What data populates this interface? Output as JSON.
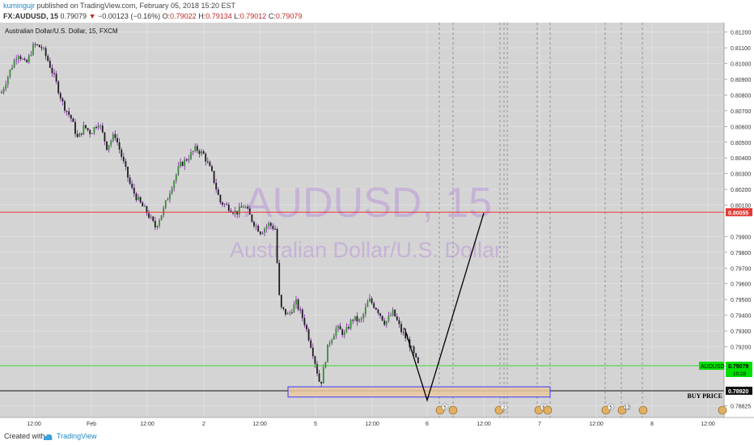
{
  "header": {
    "author": "kumingujr",
    "published": "published on TradingView.com, February 05, 2018 15:20 EST",
    "symbol_line": "FX:AUDUSD, 15",
    "last": "0.79079",
    "change_arrow": "▼",
    "change": "−0.00123 (−0.16%)",
    "o_label": "O:",
    "o": "0.79022",
    "h_label": "H:",
    "h": "0.79134",
    "l_label": "L:",
    "l": "0.79012",
    "c_label": "C:",
    "c": "0.79079"
  },
  "footer": {
    "created_with": "Created with",
    "brand": "TradingView"
  },
  "chart_data": {
    "type": "candlestick",
    "title": "Australian Dollar/U.S. Dollar, 15, FXCM",
    "watermark_symbol": "AUDUSD, 15",
    "watermark_name": "Australian Dollar/U.S. Dollar",
    "y_ticks": [
      "0.81200",
      "0.81100",
      "0.81000",
      "0.80900",
      "0.80800",
      "0.80700",
      "0.80600",
      "0.80500",
      "0.80400",
      "0.80300",
      "0.80200",
      "0.80100",
      "0.79900",
      "0.79800",
      "0.79700",
      "0.79600",
      "0.79500",
      "0.79400",
      "0.79300",
      "0.79200",
      "0.78825"
    ],
    "y_range": [
      0.7875,
      0.8126
    ],
    "x_ticks": [
      "12:00",
      "Feb",
      "12:00",
      "2",
      "12:00",
      "5",
      "12:00",
      "6",
      "12:00",
      "7",
      "12:00",
      "8",
      "12:00"
    ],
    "price_path": [
      [
        0,
        0.8079
      ],
      [
        12,
        0.8095
      ],
      [
        22,
        0.8107
      ],
      [
        32,
        0.8099
      ],
      [
        42,
        0.8112
      ],
      [
        52,
        0.811
      ],
      [
        60,
        0.8101
      ],
      [
        68,
        0.809
      ],
      [
        78,
        0.8074
      ],
      [
        88,
        0.8065
      ],
      [
        96,
        0.8052
      ],
      [
        104,
        0.806
      ],
      [
        112,
        0.8056
      ],
      [
        122,
        0.8063
      ],
      [
        132,
        0.8047
      ],
      [
        142,
        0.8055
      ],
      [
        152,
        0.8038
      ],
      [
        162,
        0.8021
      ],
      [
        172,
        0.8012
      ],
      [
        182,
        0.8005
      ],
      [
        192,
        0.7996
      ],
      [
        202,
        0.8007
      ],
      [
        212,
        0.8022
      ],
      [
        222,
        0.8035
      ],
      [
        232,
        0.804
      ],
      [
        242,
        0.8046
      ],
      [
        252,
        0.8042
      ],
      [
        262,
        0.803
      ],
      [
        272,
        0.8012
      ],
      [
        282,
        0.8009
      ],
      [
        292,
        0.8005
      ],
      [
        302,
        0.801
      ],
      [
        312,
        0.8
      ],
      [
        322,
        0.7993
      ],
      [
        332,
        0.7998
      ],
      [
        340,
        0.7995
      ],
      [
        346,
        0.7945
      ],
      [
        356,
        0.794
      ],
      [
        366,
        0.7948
      ],
      [
        376,
        0.7936
      ],
      [
        386,
        0.7918
      ],
      [
        396,
        0.7895
      ],
      [
        406,
        0.7922
      ],
      [
        416,
        0.7932
      ],
      [
        426,
        0.7928
      ],
      [
        436,
        0.7938
      ],
      [
        446,
        0.7936
      ],
      [
        456,
        0.795
      ],
      [
        466,
        0.7944
      ],
      [
        476,
        0.7935
      ],
      [
        486,
        0.7942
      ],
      [
        496,
        0.793
      ],
      [
        506,
        0.7922
      ],
      [
        512,
        0.7914
      ],
      [
        517,
        0.7908
      ]
    ],
    "current_price": "0.79079",
    "current_symbol": "AUDUSD",
    "countdown": "10:28",
    "resistance_level": "0.80055",
    "buy_level": "0.78920",
    "buy_label": "BUY PRICE",
    "projection": [
      [
        500,
        0.7932
      ],
      [
        528,
        0.7886
      ],
      [
        598,
        0.8005
      ]
    ],
    "buy_zone": {
      "x_from": 356,
      "x_to": 680,
      "y_top": 0.78945,
      "y_bottom": 0.7888
    },
    "event_markers": [
      "5",
      "2",
      "6",
      "5",
      "12"
    ],
    "grid": true,
    "colors": {
      "up": "#3a8a3a",
      "down": "#1c1c1c",
      "wick": "#7b1fa2",
      "background": "#d4d4d4",
      "resistance": "#e53935",
      "buy_line": "#111111",
      "current": "#00e000",
      "zone_fill": "#e9c8a0",
      "zone_border": "#3c3cff",
      "watermark": "#b48ad6"
    }
  }
}
